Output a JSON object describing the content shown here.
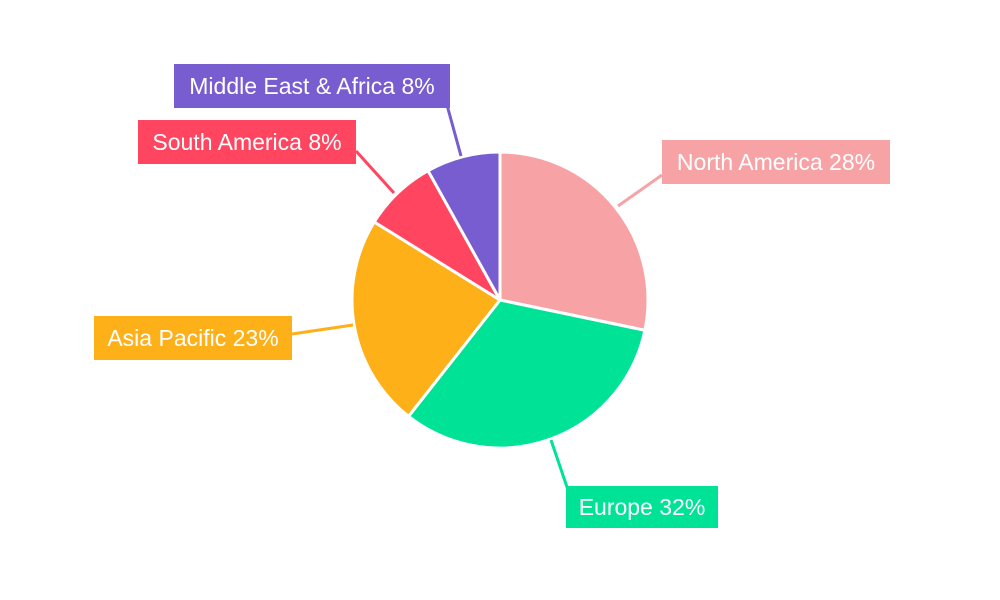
{
  "chart_data": {
    "type": "pie",
    "title": "",
    "slices": [
      {
        "label": "North America",
        "value": 28,
        "percent_label": "28%",
        "color": "#f7a3a6"
      },
      {
        "label": "Europe",
        "value": 32,
        "percent_label": "32%",
        "color": "#00e396"
      },
      {
        "label": "Asia Pacific",
        "value": 23,
        "percent_label": "23%",
        "color": "#feb019"
      },
      {
        "label": "South America",
        "value": 8,
        "percent_label": "8%",
        "color": "#ff4560"
      },
      {
        "label": "Middle East & Africa",
        "value": 8,
        "percent_label": "8%",
        "color": "#775dd0"
      }
    ],
    "start_angle": "12 o'clock",
    "direction": "clockwise",
    "legend": "none",
    "label_style": "outside callout boxes with leader lines",
    "label_text_color": "#ffffff"
  }
}
